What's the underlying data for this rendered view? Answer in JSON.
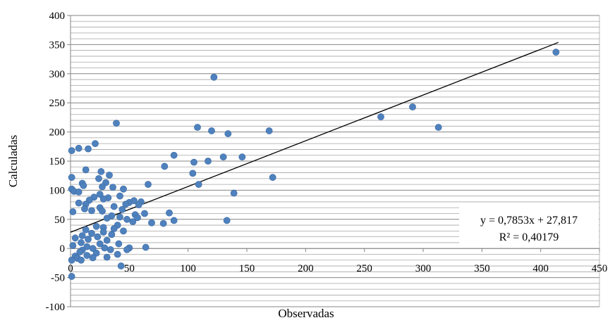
{
  "chart_data": {
    "type": "scatter",
    "xlabel": "Observadas",
    "ylabel": "Calculadas",
    "xlim": [
      0,
      450
    ],
    "ylim": [
      -100,
      400
    ],
    "xticks": [
      0,
      50,
      100,
      150,
      200,
      250,
      300,
      350,
      400,
      450
    ],
    "yticks": [
      -100,
      -50,
      0,
      50,
      100,
      150,
      200,
      250,
      300,
      350,
      400
    ],
    "grid": "horizontal",
    "marker_color": "#4F81BD",
    "trendline": {
      "slope": 0.7853,
      "intercept": 27.817,
      "x_range": [
        0,
        415
      ],
      "color": "#000000",
      "equation": "y = 0,7853x + 27,817",
      "r2": "R² = 0,40179"
    },
    "points": [
      [
        413,
        337
      ],
      [
        291,
        243
      ],
      [
        264,
        226
      ],
      [
        313,
        208
      ],
      [
        122,
        294
      ],
      [
        39,
        215
      ],
      [
        108,
        208
      ],
      [
        120,
        202
      ],
      [
        134,
        197
      ],
      [
        169,
        202
      ],
      [
        21,
        180
      ],
      [
        7,
        172
      ],
      [
        15,
        171
      ],
      [
        1,
        168
      ],
      [
        88,
        160
      ],
      [
        130,
        157
      ],
      [
        146,
        157
      ],
      [
        117,
        150
      ],
      [
        105,
        148
      ],
      [
        80,
        141
      ],
      [
        13,
        135
      ],
      [
        26,
        132
      ],
      [
        104,
        129
      ],
      [
        33,
        126
      ],
      [
        1,
        122
      ],
      [
        172,
        122
      ],
      [
        24,
        120
      ],
      [
        30,
        113
      ],
      [
        66,
        110
      ],
      [
        109,
        110
      ],
      [
        10,
        112
      ],
      [
        11,
        108
      ],
      [
        27,
        106
      ],
      [
        36,
        105
      ],
      [
        45,
        102
      ],
      [
        1,
        102
      ],
      [
        3,
        98
      ],
      [
        7,
        97
      ],
      [
        139,
        95
      ],
      [
        25,
        93
      ],
      [
        42,
        90
      ],
      [
        20,
        88
      ],
      [
        32,
        87
      ],
      [
        28,
        85
      ],
      [
        16,
        83
      ],
      [
        60,
        80
      ],
      [
        50,
        79
      ],
      [
        54,
        82
      ],
      [
        7,
        78
      ],
      [
        13,
        76
      ],
      [
        47,
        76
      ],
      [
        58,
        75
      ],
      [
        37,
        72
      ],
      [
        25,
        70
      ],
      [
        12,
        68
      ],
      [
        44,
        67
      ],
      [
        18,
        65
      ],
      [
        27,
        64
      ],
      [
        2,
        63
      ],
      [
        84,
        61
      ],
      [
        63,
        60
      ],
      [
        55,
        58
      ],
      [
        35,
        56
      ],
      [
        42,
        54
      ],
      [
        57,
        53
      ],
      [
        31,
        52
      ],
      [
        48,
        50
      ],
      [
        88,
        48
      ],
      [
        133,
        48
      ],
      [
        53,
        46
      ],
      [
        69,
        44
      ],
      [
        79,
        43
      ],
      [
        40,
        40
      ],
      [
        22,
        38
      ],
      [
        28,
        36
      ],
      [
        37,
        34
      ],
      [
        13,
        32
      ],
      [
        45,
        30
      ],
      [
        28,
        28
      ],
      [
        18,
        26
      ],
      [
        35,
        24
      ],
      [
        10,
        22
      ],
      [
        23,
        20
      ],
      [
        4,
        18
      ],
      [
        15,
        16
      ],
      [
        31,
        14
      ],
      [
        9,
        10
      ],
      [
        25,
        8
      ],
      [
        41,
        8
      ],
      [
        2,
        5
      ],
      [
        14,
        3
      ],
      [
        29,
        1
      ],
      [
        64,
        2
      ],
      [
        19,
        0
      ],
      [
        34,
        -2
      ],
      [
        10,
        -3
      ],
      [
        50,
        1
      ],
      [
        48,
        -2
      ],
      [
        8,
        -6
      ],
      [
        22,
        -8
      ],
      [
        40,
        -10
      ],
      [
        4,
        -13
      ],
      [
        14,
        -12
      ],
      [
        31,
        -15
      ],
      [
        6,
        -17
      ],
      [
        19,
        -16
      ],
      [
        1,
        -20
      ],
      [
        9,
        -20
      ],
      [
        43,
        -30
      ],
      [
        1,
        -48
      ]
    ]
  }
}
